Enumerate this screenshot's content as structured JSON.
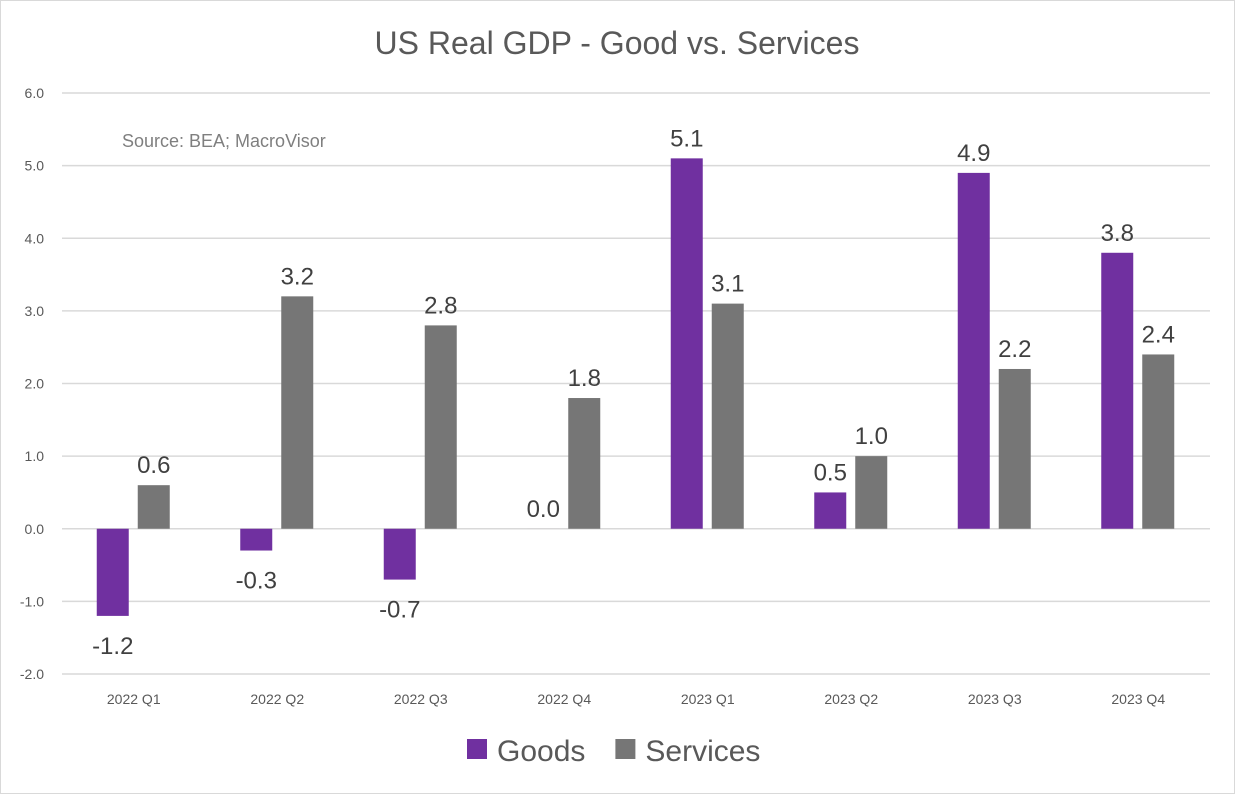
{
  "chart_data": {
    "type": "bar",
    "title": "US Real GDP - Good vs. Services",
    "annotation": "Source: BEA; MacroVisor",
    "categories": [
      "2022 Q1",
      "2022 Q2",
      "2022 Q3",
      "2022 Q4",
      "2023 Q1",
      "2023 Q2",
      "2023 Q3",
      "2023 Q4"
    ],
    "series": [
      {
        "name": "Goods",
        "color": "#7030A0",
        "values": [
          -1.2,
          -0.3,
          -0.7,
          0.0,
          5.1,
          0.5,
          4.9,
          3.8
        ]
      },
      {
        "name": "Services",
        "color": "#767676",
        "values": [
          0.6,
          3.2,
          2.8,
          1.8,
          3.1,
          1.0,
          2.2,
          2.4
        ]
      }
    ],
    "ylim": [
      -2.0,
      6.0
    ],
    "yticks": [
      -2.0,
      -1.0,
      0.0,
      1.0,
      2.0,
      3.0,
      4.0,
      5.0,
      6.0
    ],
    "grid": true,
    "legend": "bottom",
    "xlabel": "",
    "ylabel": ""
  }
}
